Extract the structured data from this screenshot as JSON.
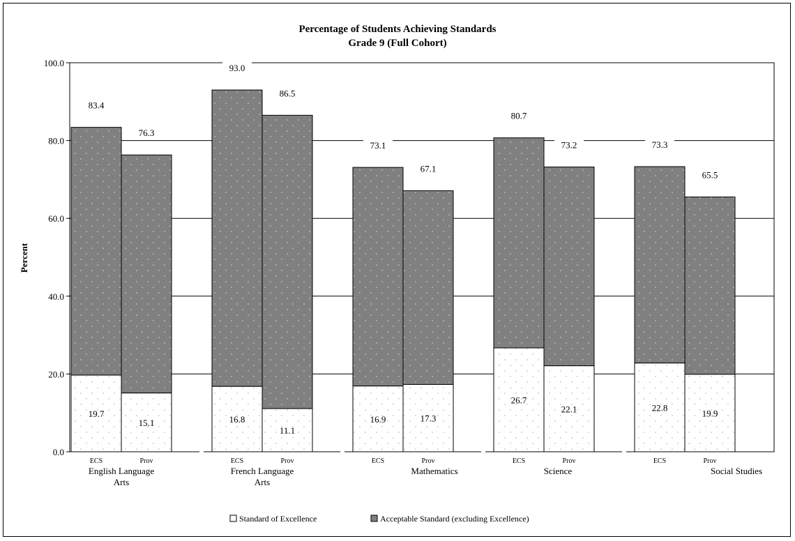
{
  "chart_data": {
    "type": "bar",
    "stacked": true,
    "title": "Percentage of Students Achieving Standards",
    "subtitle": "Grade 9 (Full Cohort)",
    "ylabel": "Percent",
    "ylim": [
      0,
      100
    ],
    "yticks": [
      "0.0",
      "20.0",
      "40.0",
      "60.0",
      "80.0",
      "100.0"
    ],
    "ytick_values": [
      0,
      20,
      40,
      60,
      80,
      100
    ],
    "grid": true,
    "legend_position": "bottom",
    "groups": [
      {
        "label": "English Language Arts",
        "label_lines": [
          "English Language",
          "Arts"
        ],
        "bars": [
          {
            "sub": "ECS",
            "excellence": 19.7,
            "total": 83.4,
            "excellence_label": "19.7",
            "total_label": "83.4"
          },
          {
            "sub": "Prov",
            "excellence": 15.1,
            "total": 76.3,
            "excellence_label": "15.1",
            "total_label": "76.3"
          }
        ]
      },
      {
        "label": "French Language Arts",
        "label_lines": [
          "French Language",
          "Arts"
        ],
        "bars": [
          {
            "sub": "ECS",
            "excellence": 16.8,
            "total": 93.0,
            "excellence_label": "16.8",
            "total_label": "93.0"
          },
          {
            "sub": "Prov",
            "excellence": 11.1,
            "total": 86.5,
            "excellence_label": "11.1",
            "total_label": "86.5"
          }
        ]
      },
      {
        "label": "Mathematics",
        "label_lines": [
          "Mathematics"
        ],
        "bars": [
          {
            "sub": "ECS",
            "excellence": 16.9,
            "total": 73.1,
            "excellence_label": "16.9",
            "total_label": "73.1"
          },
          {
            "sub": "Prov",
            "excellence": 17.3,
            "total": 67.1,
            "excellence_label": "17.3",
            "total_label": "67.1"
          }
        ]
      },
      {
        "label": "Science",
        "label_lines": [
          "Science"
        ],
        "bars": [
          {
            "sub": "ECS",
            "excellence": 26.7,
            "total": 80.7,
            "excellence_label": "26.7",
            "total_label": "80.7"
          },
          {
            "sub": "Prov",
            "excellence": 22.1,
            "total": 73.2,
            "excellence_label": "22.1",
            "total_label": "73.2"
          }
        ]
      },
      {
        "label": "Social Studies",
        "label_lines": [
          "Social Studies"
        ],
        "bars": [
          {
            "sub": "ECS",
            "excellence": 22.8,
            "total": 73.3,
            "excellence_label": "22.8",
            "total_label": "73.3"
          },
          {
            "sub": "Prov",
            "excellence": 19.9,
            "total": 65.5,
            "excellence_label": "19.9",
            "total_label": "65.5"
          }
        ]
      }
    ],
    "legend": [
      {
        "name": "Standard of Excellence",
        "color": "#ffffff"
      },
      {
        "name": "Acceptable Standard (excluding Excellence)",
        "color": "#808080"
      }
    ]
  }
}
